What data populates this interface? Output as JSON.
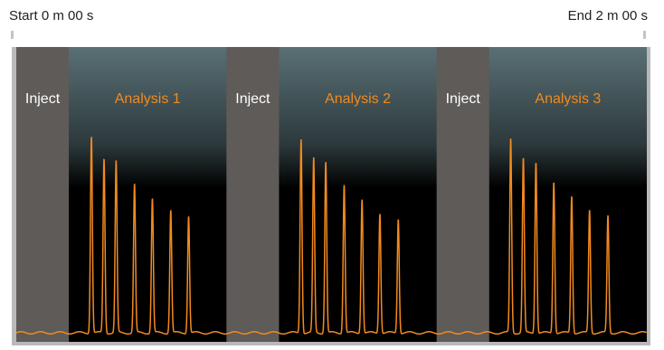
{
  "header": {
    "start_label": "Start 0 m 00 s",
    "end_label": "End 2 m 00 s"
  },
  "colors": {
    "inject_band": "#5f5b59",
    "background_top": "#5a7075",
    "background_bottom": "#000000",
    "trace": "#f28a1f",
    "inject_text": "#ffffff",
    "analysis_text": "#f28a1f"
  },
  "chart_data": {
    "type": "line",
    "title": "",
    "xlabel": "",
    "ylabel": "",
    "x_unit": "s",
    "xlim": [
      0,
      120
    ],
    "ylim": [
      0,
      1
    ],
    "grid": false,
    "phases": [
      {
        "label": "Inject",
        "kind": "inject",
        "start": 0,
        "end": 10
      },
      {
        "label": "Analysis 1",
        "kind": "analysis",
        "start": 10,
        "end": 40
      },
      {
        "label": "Inject",
        "kind": "inject",
        "start": 40,
        "end": 50
      },
      {
        "label": "Analysis 2",
        "kind": "analysis",
        "start": 50,
        "end": 80
      },
      {
        "label": "Inject",
        "kind": "inject",
        "start": 80,
        "end": 90
      },
      {
        "label": "Analysis 3",
        "kind": "analysis",
        "start": 90,
        "end": 120
      }
    ],
    "series": [
      {
        "peaks": [
          {
            "x": 14.3,
            "height": 0.69
          },
          {
            "x": 16.7,
            "height": 0.61
          },
          {
            "x": 19.0,
            "height": 0.6
          },
          {
            "x": 22.5,
            "height": 0.52
          },
          {
            "x": 25.9,
            "height": 0.47
          },
          {
            "x": 29.4,
            "height": 0.43
          },
          {
            "x": 32.8,
            "height": 0.41
          },
          {
            "x": 54.2,
            "height": 0.68
          },
          {
            "x": 56.6,
            "height": 0.61
          },
          {
            "x": 58.9,
            "height": 0.6
          },
          {
            "x": 62.4,
            "height": 0.52
          },
          {
            "x": 65.8,
            "height": 0.47
          },
          {
            "x": 69.2,
            "height": 0.42
          },
          {
            "x": 72.7,
            "height": 0.4
          },
          {
            "x": 94.1,
            "height": 0.68
          },
          {
            "x": 96.5,
            "height": 0.61
          },
          {
            "x": 98.9,
            "height": 0.6
          },
          {
            "x": 102.3,
            "height": 0.53
          },
          {
            "x": 105.7,
            "height": 0.48
          },
          {
            "x": 109.1,
            "height": 0.43
          },
          {
            "x": 112.6,
            "height": 0.41
          }
        ]
      }
    ]
  }
}
